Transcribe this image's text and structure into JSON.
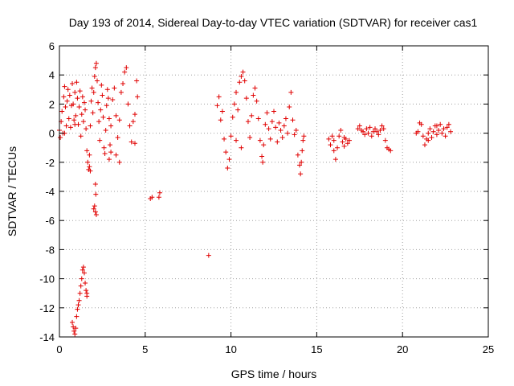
{
  "chart_data": {
    "type": "scatter",
    "title": "Day 193 of 2014, Sidereal Day-to-day VTEC variation (SDTVAR) for receiver cas1",
    "xlabel": "GPS time / hours",
    "ylabel": "SDTVAR / TECUs",
    "xlim": [
      0,
      25
    ],
    "ylim": [
      -14,
      6
    ],
    "xticks": [
      0,
      5,
      10,
      15,
      20,
      25
    ],
    "yticks": [
      -14,
      -12,
      -10,
      -8,
      -6,
      -4,
      -2,
      0,
      2,
      4,
      6
    ],
    "grid": true,
    "marker": "+",
    "marker_color": "#e00000",
    "series": [
      {
        "name": "SDTVAR",
        "points": [
          [
            0.0,
            0.2
          ],
          [
            0.05,
            -0.3
          ],
          [
            0.1,
            0.8
          ],
          [
            0.15,
            1.5
          ],
          [
            0.2,
            0.0
          ],
          [
            0.25,
            2.5
          ],
          [
            0.3,
            3.2
          ],
          [
            0.35,
            1.8
          ],
          [
            0.4,
            0.5
          ],
          [
            0.45,
            2.2
          ],
          [
            0.5,
            3.0
          ],
          [
            0.55,
            1.0
          ],
          [
            0.6,
            2.6
          ],
          [
            0.65,
            0.4
          ],
          [
            0.7,
            1.9
          ],
          [
            0.75,
            3.4
          ],
          [
            0.8,
            2.0
          ],
          [
            0.85,
            0.9
          ],
          [
            0.9,
            2.8
          ],
          [
            0.95,
            1.2
          ],
          [
            1.0,
            3.5
          ],
          [
            1.05,
            2.4
          ],
          [
            1.1,
            0.6
          ],
          [
            1.15,
            1.8
          ],
          [
            1.2,
            2.9
          ],
          [
            1.25,
            -0.2
          ],
          [
            1.3,
            1.3
          ],
          [
            1.35,
            2.5
          ],
          [
            1.4,
            0.8
          ],
          [
            1.45,
            2.1
          ],
          [
            1.5,
            1.6
          ],
          [
            1.55,
            0.3
          ],
          [
            1.6,
            -1.2
          ],
          [
            1.65,
            -2.0
          ],
          [
            1.7,
            -2.5
          ],
          [
            1.75,
            -1.5
          ],
          [
            1.8,
            0.5
          ],
          [
            1.85,
            2.2
          ],
          [
            1.9,
            3.1
          ],
          [
            1.95,
            1.4
          ],
          [
            2.0,
            2.8
          ],
          [
            2.05,
            3.9
          ],
          [
            2.1,
            4.5
          ],
          [
            2.15,
            4.8
          ],
          [
            2.2,
            3.6
          ],
          [
            2.25,
            2.1
          ],
          [
            2.3,
            0.8
          ],
          [
            2.35,
            -0.5
          ],
          [
            2.4,
            1.6
          ],
          [
            2.45,
            3.3
          ],
          [
            2.5,
            2.6
          ],
          [
            2.55,
            1.1
          ],
          [
            2.6,
            -1.0
          ],
          [
            2.65,
            -1.4
          ],
          [
            2.7,
            0.2
          ],
          [
            2.75,
            1.9
          ],
          [
            2.8,
            3.0
          ],
          [
            2.85,
            2.4
          ],
          [
            2.9,
            1.0
          ],
          [
            2.95,
            -0.8
          ],
          [
            3.0,
            0.5
          ],
          [
            3.1,
            2.3
          ],
          [
            3.2,
            3.1
          ],
          [
            3.3,
            1.2
          ],
          [
            3.4,
            -0.3
          ],
          [
            3.5,
            0.9
          ],
          [
            3.6,
            2.8
          ],
          [
            3.7,
            3.4
          ],
          [
            3.8,
            4.2
          ],
          [
            3.9,
            4.5
          ],
          [
            4.0,
            2.0
          ],
          [
            4.1,
            0.5
          ],
          [
            4.2,
            -0.6
          ],
          [
            4.3,
            0.8
          ],
          [
            4.4,
            1.3
          ],
          [
            4.5,
            3.6
          ],
          [
            4.55,
            2.5
          ],
          [
            4.4,
            -0.7
          ],
          [
            0.3,
            0.0
          ],
          [
            0.9,
            0.6
          ],
          [
            2.1,
            -3.5
          ],
          [
            2.12,
            -4.2
          ],
          [
            2.05,
            -5.0
          ],
          [
            2.1,
            -5.4
          ],
          [
            2.15,
            -5.6
          ],
          [
            2.0,
            -5.2
          ],
          [
            1.75,
            -2.3
          ],
          [
            1.8,
            -2.6
          ],
          [
            3.3,
            -1.5
          ],
          [
            3.5,
            -2.0
          ],
          [
            3.0,
            -1.3
          ],
          [
            2.9,
            -1.8
          ],
          [
            5.3,
            -4.5
          ],
          [
            5.4,
            -4.4
          ],
          [
            5.8,
            -4.4
          ],
          [
            5.85,
            -4.1
          ],
          [
            8.7,
            -8.4
          ],
          [
            0.75,
            -13.0
          ],
          [
            0.8,
            -13.3
          ],
          [
            0.85,
            -13.6
          ],
          [
            0.9,
            -13.8
          ],
          [
            0.95,
            -13.4
          ],
          [
            1.0,
            -12.6
          ],
          [
            1.05,
            -12.1
          ],
          [
            1.1,
            -11.8
          ],
          [
            1.15,
            -11.5
          ],
          [
            1.2,
            -11.0
          ],
          [
            1.25,
            -10.5
          ],
          [
            1.3,
            -10.0
          ],
          [
            1.35,
            -9.4
          ],
          [
            1.4,
            -9.2
          ],
          [
            1.45,
            -9.6
          ],
          [
            1.5,
            -10.3
          ],
          [
            1.55,
            -10.8
          ],
          [
            1.6,
            -11.2
          ],
          [
            1.6,
            -11.0
          ],
          [
            9.2,
            1.9
          ],
          [
            9.3,
            2.5
          ],
          [
            9.4,
            0.9
          ],
          [
            9.5,
            1.5
          ],
          [
            9.6,
            -0.4
          ],
          [
            9.7,
            -1.3
          ],
          [
            9.8,
            -2.4
          ],
          [
            9.9,
            -1.8
          ],
          [
            10.0,
            -0.2
          ],
          [
            10.1,
            1.1
          ],
          [
            10.2,
            2.0
          ],
          [
            10.3,
            2.8
          ],
          [
            10.4,
            1.6
          ],
          [
            10.5,
            3.5
          ],
          [
            10.6,
            3.9
          ],
          [
            10.7,
            4.2
          ],
          [
            10.8,
            3.6
          ],
          [
            10.9,
            2.4
          ],
          [
            11.0,
            0.8
          ],
          [
            11.1,
            -0.3
          ],
          [
            11.2,
            1.2
          ],
          [
            11.3,
            2.6
          ],
          [
            11.4,
            3.1
          ],
          [
            11.5,
            2.2
          ],
          [
            11.6,
            1.0
          ],
          [
            11.7,
            -0.5
          ],
          [
            11.8,
            -1.6
          ],
          [
            11.85,
            -2.0
          ],
          [
            11.9,
            -0.8
          ],
          [
            12.0,
            0.6
          ],
          [
            12.1,
            1.4
          ],
          [
            12.2,
            0.3
          ],
          [
            12.3,
            -0.4
          ],
          [
            12.4,
            0.8
          ],
          [
            12.5,
            1.5
          ],
          [
            12.6,
            0.4
          ],
          [
            12.7,
            -0.6
          ],
          [
            12.8,
            0.7
          ],
          [
            12.9,
            0.2
          ],
          [
            13.0,
            -0.3
          ],
          [
            13.1,
            0.5
          ],
          [
            13.2,
            1.0
          ],
          [
            13.3,
            0.0
          ],
          [
            13.4,
            1.8
          ],
          [
            13.5,
            2.8
          ],
          [
            13.6,
            0.9
          ],
          [
            13.7,
            -0.1
          ],
          [
            13.8,
            0.2
          ],
          [
            13.9,
            -1.5
          ],
          [
            14.0,
            -2.2
          ],
          [
            14.05,
            -2.8
          ],
          [
            14.1,
            -2.0
          ],
          [
            14.15,
            -1.2
          ],
          [
            14.2,
            -0.5
          ],
          [
            14.25,
            -0.2
          ],
          [
            10.3,
            -0.5
          ],
          [
            10.6,
            -1.0
          ],
          [
            15.8,
            -0.8
          ],
          [
            15.9,
            -0.2
          ],
          [
            16.0,
            -1.2
          ],
          [
            16.1,
            -1.8
          ],
          [
            16.2,
            -1.0
          ],
          [
            16.3,
            -0.2
          ],
          [
            16.4,
            0.2
          ],
          [
            16.5,
            -0.6
          ],
          [
            16.6,
            -0.9
          ],
          [
            16.7,
            -0.4
          ],
          [
            16.8,
            -0.7
          ],
          [
            16.9,
            -0.5
          ],
          [
            15.7,
            -0.4
          ],
          [
            16.0,
            -0.5
          ],
          [
            16.6,
            -0.3
          ],
          [
            17.4,
            0.3
          ],
          [
            17.5,
            0.5
          ],
          [
            17.6,
            0.2
          ],
          [
            17.7,
            0.1
          ],
          [
            17.8,
            -0.1
          ],
          [
            17.9,
            0.3
          ],
          [
            18.0,
            0.0
          ],
          [
            18.1,
            0.4
          ],
          [
            18.2,
            -0.2
          ],
          [
            18.3,
            0.1
          ],
          [
            18.4,
            0.3
          ],
          [
            18.5,
            0.1
          ],
          [
            18.6,
            -0.1
          ],
          [
            18.7,
            0.2
          ],
          [
            18.8,
            0.5
          ],
          [
            18.9,
            0.3
          ],
          [
            19.0,
            -0.5
          ],
          [
            19.1,
            -1.0
          ],
          [
            19.2,
            -1.1
          ],
          [
            19.3,
            -1.2
          ],
          [
            20.8,
            0.0
          ],
          [
            20.9,
            0.1
          ],
          [
            21.0,
            0.7
          ],
          [
            21.1,
            0.6
          ],
          [
            21.2,
            -0.2
          ],
          [
            21.3,
            -0.8
          ],
          [
            21.4,
            -0.4
          ],
          [
            21.5,
            0.0
          ],
          [
            21.6,
            0.3
          ],
          [
            21.7,
            -0.3
          ],
          [
            21.8,
            0.1
          ],
          [
            21.9,
            0.5
          ],
          [
            22.0,
            -0.1
          ],
          [
            22.1,
            0.2
          ],
          [
            22.2,
            0.6
          ],
          [
            22.3,
            0.0
          ],
          [
            22.4,
            0.3
          ],
          [
            22.5,
            -0.2
          ],
          [
            22.6,
            0.4
          ],
          [
            22.7,
            0.6
          ],
          [
            22.8,
            0.1
          ],
          [
            21.5,
            -0.5
          ],
          [
            22.0,
            0.5
          ]
        ]
      }
    ]
  }
}
